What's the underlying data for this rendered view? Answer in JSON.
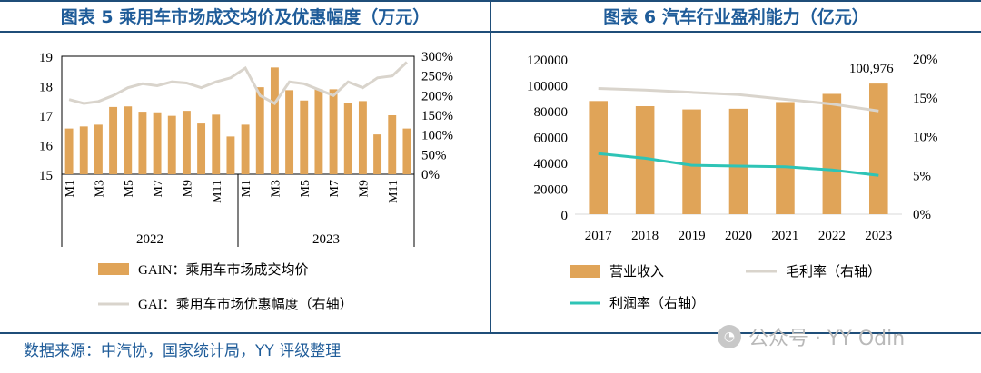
{
  "titles": {
    "left": "图表 5 乘用车市场成交均价及优惠幅度（万元）",
    "right": "图表 6 汽车行业盈利能力（亿元）"
  },
  "source": "数据来源：中汽协，国家统计局，YY 评级整理",
  "watermark": "公众号 · YY Odin",
  "colors": {
    "bar": "#e0a458",
    "line_gray": "#d9d4cc",
    "line_teal": "#2ec4b6",
    "title": "#1f5c99"
  },
  "chart_data": [
    {
      "type": "bar",
      "title": "图表 5 乘用车市场成交均价及优惠幅度（万元）",
      "categories": [
        "M1",
        "M2",
        "M3",
        "M4",
        "M5",
        "M6",
        "M7",
        "M8",
        "M9",
        "M10",
        "M11",
        "M12",
        "M1",
        "M2",
        "M3",
        "M4",
        "M5",
        "M6",
        "M7",
        "M8",
        "M9",
        "M10",
        "M11",
        "M12"
      ],
      "tick_labels": [
        "M1",
        "M3",
        "M5",
        "M7",
        "M9",
        "M11",
        "M1",
        "M3",
        "M5",
        "M7",
        "M9",
        "M11"
      ],
      "years": [
        "2022",
        "2023"
      ],
      "series": [
        {
          "name": "GAIN：乘用车市场成交均价",
          "type": "bar",
          "axis": "left",
          "values": [
            16.55,
            16.62,
            16.68,
            17.28,
            17.3,
            17.12,
            17.1,
            16.98,
            17.15,
            16.72,
            17.02,
            16.28,
            16.68,
            17.95,
            18.62,
            17.85,
            17.5,
            17.88,
            17.88,
            17.42,
            17.48,
            16.35,
            17.0,
            16.55
          ]
        },
        {
          "name": "GAI：乘用车市场优惠幅度（右轴）",
          "type": "line",
          "axis": "right",
          "values": [
            190,
            180,
            185,
            200,
            220,
            230,
            225,
            235,
            232,
            220,
            235,
            245,
            270,
            200,
            180,
            235,
            230,
            215,
            200,
            235,
            220,
            245,
            250,
            285
          ]
        }
      ],
      "ylim_left": [
        15,
        19
      ],
      "yticks_left": [
        15,
        16,
        17,
        18,
        19
      ],
      "ylim_right": [
        0,
        300
      ],
      "yticks_right": [
        "0%",
        "50%",
        "100%",
        "150%",
        "200%",
        "250%",
        "300%"
      ]
    },
    {
      "type": "bar",
      "title": "图表 6 汽车行业盈利能力（亿元）",
      "categories": [
        "2017",
        "2018",
        "2019",
        "2020",
        "2021",
        "2022",
        "2023"
      ],
      "series": [
        {
          "name": "营业收入",
          "type": "bar",
          "axis": "left",
          "values": [
            87500,
            83500,
            81000,
            81500,
            86700,
            93000,
            100976
          ]
        },
        {
          "name": "毛利率（右轴）",
          "type": "line",
          "axis": "right",
          "values": [
            16.2,
            16.0,
            15.7,
            15.4,
            14.8,
            14.2,
            13.3
          ]
        },
        {
          "name": "利润率（右轴）",
          "type": "line",
          "axis": "right",
          "values": [
            7.8,
            7.2,
            6.3,
            6.2,
            6.1,
            5.7,
            5.0
          ]
        }
      ],
      "annotation": "100,976",
      "ylim_left": [
        0,
        120000
      ],
      "yticks_left": [
        "0",
        "20000",
        "40000",
        "60000",
        "80000",
        "100000",
        "120000"
      ],
      "ylim_right": [
        0,
        20
      ],
      "yticks_right": [
        "0%",
        "5%",
        "10%",
        "15%",
        "20%"
      ]
    }
  ]
}
